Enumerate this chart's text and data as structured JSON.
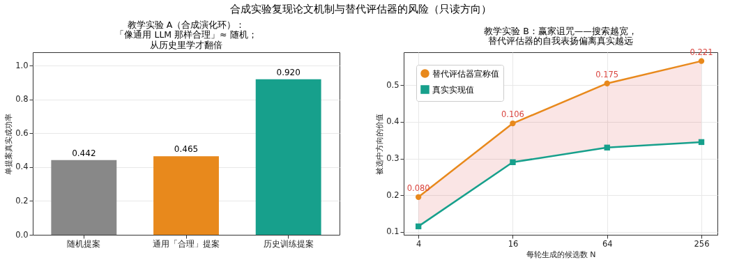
{
  "chart_data": [
    {
      "type": "bar",
      "title": "教学实验 A（合成演化环）：「像通用 LLM 那样合理」≈ 随机；从历史里学才翻倍",
      "ylabel": "单提案真实成功率",
      "annotations": [
        "合成实验复现论文机制与替代评估器的风险（只读方向）"
      ],
      "categories": [
        "随机提案",
        "通用「合理」提案",
        "历史训练提案"
      ],
      "values": [
        0.442,
        0.465,
        0.92
      ],
      "colors": [
        "#888888",
        "#e8891c",
        "#17a08c"
      ],
      "value_labels": [
        "0.442",
        "0.465",
        "0.920"
      ],
      "ylim": [
        0,
        1.08
      ],
      "yticks": [
        {
          "value": 0,
          "label": "0.0"
        },
        0.2,
        0.4,
        0.6,
        0.8,
        {
          "value": 1,
          "label": "1.0"
        }
      ],
      "grid": "y"
    },
    {
      "type": "line",
      "title": "教学实验 B：赢家诅咒——搜索越宽，替代评估器的自我表扬偏离真实越远",
      "xlabel": "每轮生成的候选数 N",
      "ylabel": "被选中方向的价值",
      "x": [
        4,
        16,
        64,
        256
      ],
      "log": "x",
      "series": [
        {
          "name": "替代评估器宣称值",
          "color": "#e8891c",
          "marker": "circle",
          "values": [
            0.195,
            0.396,
            0.505,
            0.566
          ],
          "lower": [
            0.115,
            0.29,
            0.33,
            0.345
          ],
          "upper": [
            0.195,
            0.396,
            0.505,
            0.566
          ]
        },
        {
          "name": "真实实现值",
          "color": "#17a08c",
          "marker": "square",
          "values": [
            0.115,
            0.29,
            0.33,
            0.345
          ]
        }
      ],
      "annotations": [
        {
          "text": "0.080",
          "x": 4,
          "y": 0.195
        },
        {
          "text": "0.106",
          "x": 16,
          "y": 0.396
        },
        {
          "text": "0.175",
          "x": 64,
          "y": 0.505
        },
        {
          "text": "0.221",
          "x": 256,
          "y": 0.566
        }
      ],
      "xlim": [
        3.22,
        324
      ],
      "xticks": [
        4,
        16,
        64,
        256
      ],
      "ylim": [
        0.092,
        0.59
      ],
      "yticks": [
        0.1,
        0.2,
        0.3,
        0.4,
        0.5
      ],
      "grid": true,
      "legend": "top left"
    }
  ]
}
